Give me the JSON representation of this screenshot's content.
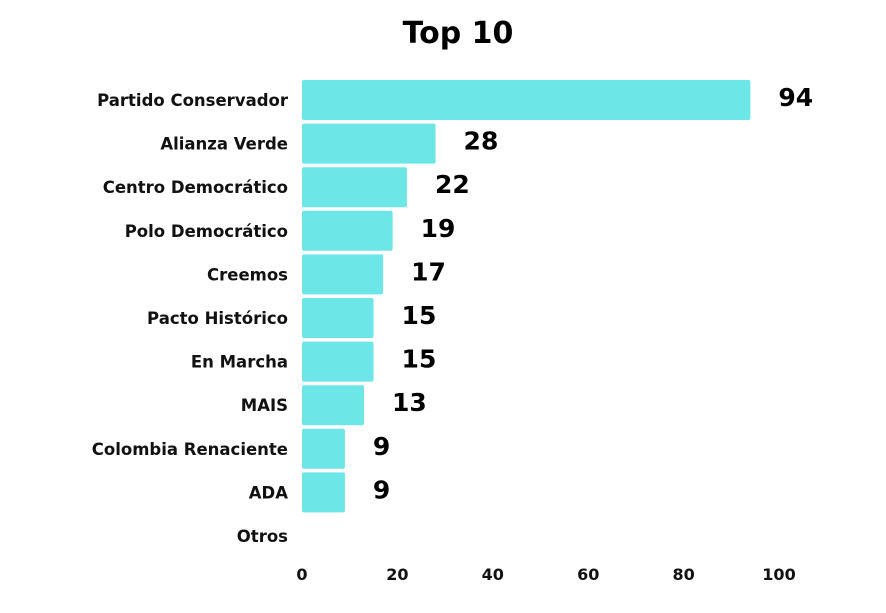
{
  "chart_data": {
    "type": "bar",
    "orientation": "horizontal",
    "title": "Top 10",
    "categories": [
      "Partido Conservador",
      "Alianza Verde",
      "Centro Democrático",
      "Polo Democrático",
      "Creemos",
      "Pacto Histórico",
      "En Marcha",
      "MAIS",
      "Colombia Renaciente",
      "ADA",
      "Otros"
    ],
    "values": [
      94,
      28,
      22,
      19,
      17,
      15,
      15,
      13,
      9,
      9,
      null
    ],
    "xlim": [
      0,
      100
    ],
    "xticks": [
      "0",
      "20",
      "40",
      "60",
      "80",
      "100"
    ],
    "xlabel": "",
    "ylabel": "",
    "grid": false,
    "legend": "none",
    "bar_color": "#6de6e8"
  }
}
